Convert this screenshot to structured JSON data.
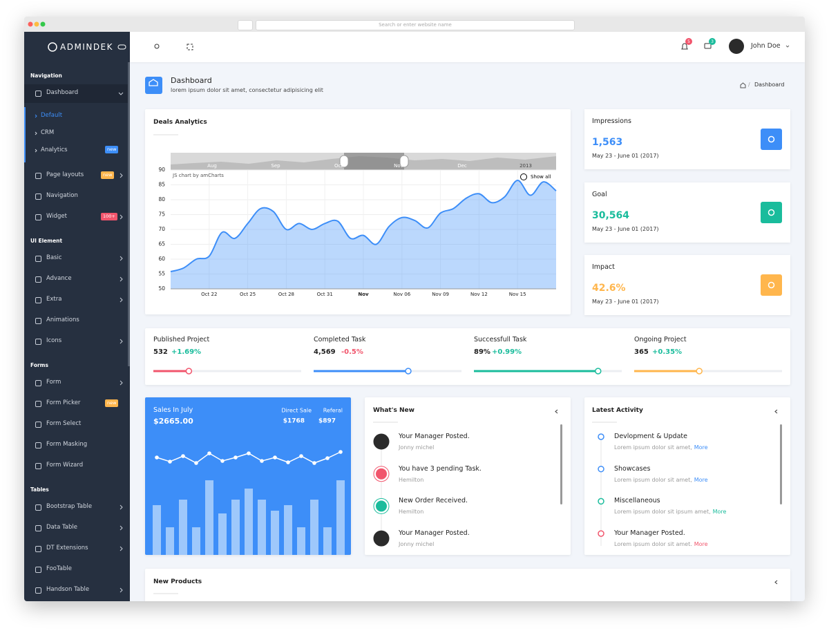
{
  "browser": {
    "address_placeholder": "Search or enter website name"
  },
  "sidebar": {
    "brand": "ADMINDEK",
    "sections": [
      {
        "title": "Navigation",
        "items": [
          {
            "label": "Dashboard",
            "has_submenu": true,
            "children": [
              {
                "label": "Default",
                "active": true
              },
              {
                "label": "CRM"
              },
              {
                "label": "Analytics",
                "badge": {
                  "text": "new",
                  "color": "#3d8ef8"
                }
              }
            ]
          },
          {
            "label": "Page layouts",
            "has_submenu": true,
            "badge": {
              "text": "new",
              "color": "#ffb64d"
            }
          },
          {
            "label": "Navigation"
          },
          {
            "label": "Widget",
            "has_submenu": true,
            "badge": {
              "text": "100+",
              "color": "#f1556c"
            }
          }
        ]
      },
      {
        "title": "UI Element",
        "items": [
          {
            "label": "Basic",
            "has_submenu": true
          },
          {
            "label": "Advance",
            "has_submenu": true
          },
          {
            "label": "Extra",
            "has_submenu": true
          },
          {
            "label": "Animations"
          },
          {
            "label": "Icons",
            "has_submenu": true
          }
        ]
      },
      {
        "title": "Forms",
        "items": [
          {
            "label": "Form",
            "has_submenu": true
          },
          {
            "label": "Form Picker",
            "badge": {
              "text": "new",
              "color": "#ffb64d"
            }
          },
          {
            "label": "Form Select"
          },
          {
            "label": "Form Masking"
          },
          {
            "label": "Form Wizard"
          }
        ]
      },
      {
        "title": "Tables",
        "items": [
          {
            "label": "Bootstrap Table",
            "has_submenu": true
          },
          {
            "label": "Data Table",
            "has_submenu": true
          },
          {
            "label": "DT Extensions",
            "has_submenu": true
          },
          {
            "label": "FooTable"
          },
          {
            "label": "Handson Table",
            "has_submenu": true
          }
        ]
      }
    ]
  },
  "topbar": {
    "notifications_badge": "5",
    "messages_badge": "3",
    "user_name": "John Doe"
  },
  "page_header": {
    "title": "Dashboard",
    "subtitle": "lorem ipsum dolor sit amet, consectetur adipisicing elit",
    "breadcrumb": "Dashboard"
  },
  "chart_data": [
    {
      "type": "area",
      "title": "Deals Analytics",
      "categories": [
        null,
        null,
        null,
        "Oct 22",
        null,
        null,
        "Oct 25",
        null,
        null,
        "Oct 28",
        null,
        null,
        "Oct 31",
        null,
        null,
        "Nov",
        null,
        null,
        "Nov 06",
        null,
        null,
        "Nov 09",
        null,
        null,
        "Nov 12",
        null,
        null,
        "Nov 15",
        null,
        null,
        null
      ],
      "values": [
        55.8,
        57,
        60,
        61,
        69,
        67,
        72,
        77,
        76,
        70,
        72,
        70,
        72,
        72.8,
        67,
        68,
        65,
        71,
        74,
        73,
        70.5,
        75.5,
        77,
        80.5,
        82,
        79,
        81,
        86.5,
        81.5,
        86,
        83
      ],
      "color": "#3d8ef8",
      "ylim": [
        50,
        90
      ],
      "yticks": [
        50,
        55,
        60,
        65,
        70,
        75,
        80,
        85,
        90
      ],
      "grid": true,
      "navigator_labels": [
        "Aug",
        "Sep",
        "Oct",
        "Nov",
        "Dec",
        "2013"
      ],
      "credit": "JS chart by amCharts",
      "show_all": "Show all"
    },
    {
      "type": "bar",
      "title": "Sales In July",
      "total": "$2665.00",
      "breakdown": [
        {
          "label": "Direct Sale",
          "value": "$1768"
        },
        {
          "label": "Referal",
          "value": "$897"
        }
      ],
      "series": [
        {
          "type": "bar",
          "color": "#9ec8fb",
          "values": [
            72,
            40,
            80,
            40,
            108,
            60,
            80,
            96,
            80,
            64,
            72,
            40,
            80,
            40,
            108
          ]
        },
        {
          "type": "line",
          "color": "#ffffff",
          "values": [
            38,
            32,
            40,
            30,
            44,
            33,
            38,
            44,
            33,
            38,
            31,
            40,
            30,
            37,
            46
          ]
        }
      ]
    }
  ],
  "stat_cards": [
    {
      "title": "Impressions",
      "value": "1,563",
      "period": "May 23 - June 01 (2017)",
      "color": "#3d8ef8"
    },
    {
      "title": "Goal",
      "value": "30,564",
      "period": "May 23 - June 01 (2017)",
      "color": "#1abc9c"
    },
    {
      "title": "Impact",
      "value": "42.6%",
      "period": "May 23 - June 01 (2017)",
      "color": "#ffb64d"
    }
  ],
  "projects": [
    {
      "title": "Published Project",
      "value": "532",
      "change": "+1.69%",
      "change_color": "#1abc9c",
      "progress": 24,
      "color": "#f1556c"
    },
    {
      "title": "Completed Task",
      "value": "4,569",
      "change": "-0.5%",
      "change_color": "#f1556c",
      "progress": 64,
      "color": "#3d8ef8"
    },
    {
      "title": "Successfull Task",
      "value": "89%",
      "change": "+0.99%",
      "change_color": "#1abc9c",
      "progress": 84,
      "color": "#1abc9c"
    },
    {
      "title": "Ongoing Project",
      "value": "365",
      "change": "+0.35%",
      "change_color": "#1abc9c",
      "progress": 44,
      "color": "#ffb64d"
    }
  ],
  "whats_new": {
    "title": "What's New",
    "items": [
      {
        "title": "Your Manager Posted.",
        "subtitle": "Jonny michel"
      },
      {
        "title": "You have 3 pending Task.",
        "subtitle": "Hemilton"
      },
      {
        "title": "New Order Received.",
        "subtitle": "Hemilton"
      },
      {
        "title": "Your Manager Posted.",
        "subtitle": "Jonny michel"
      }
    ]
  },
  "latest_activity": {
    "title": "Latest Activity",
    "items": [
      {
        "title": "Devlopment & Update",
        "text": "Lorem ipsum dolor sit amet,",
        "link": "More",
        "color": "#3d8ef8"
      },
      {
        "title": "Showcases",
        "text": "Lorem ipsum dolor sit amet,",
        "link": "More",
        "color": "#3d8ef8"
      },
      {
        "title": "Miscellaneous",
        "text": "Lorem ipsum dolor sit ipsum amet,",
        "link": "More",
        "color": "#1abc9c"
      },
      {
        "title": "Your Manager Posted.",
        "text": "Lorem ipsum dolor sit amet.",
        "link": "More",
        "color": "#f1556c"
      }
    ]
  },
  "new_products": {
    "title": "New Products"
  }
}
